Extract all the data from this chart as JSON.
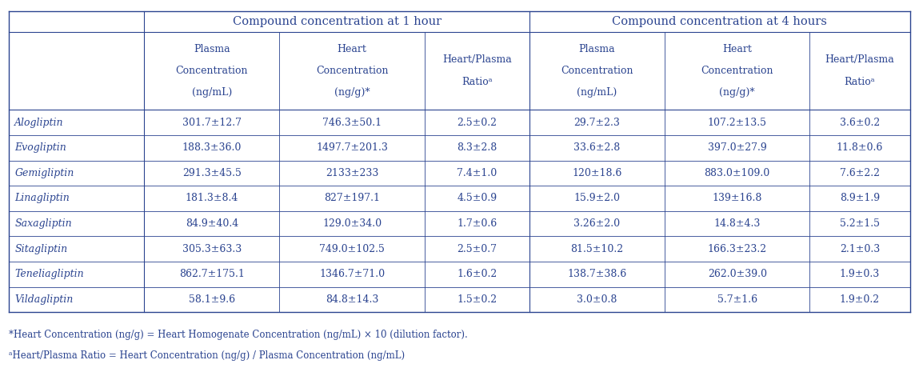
{
  "title1": "Compound concentration at 1 hour",
  "title2": "Compound concentration at 4 hours",
  "row_labels": [
    "Alogliptin",
    "Evogliptin",
    "Gemigliptin",
    "Linagliptin",
    "Saxagliptin",
    "Sitagliptin",
    "Teneliagliptin",
    "Vildagliptin"
  ],
  "col_header_line1": [
    "Plasma",
    "Heart",
    "Heart/Plasma",
    "Plasma",
    "Heart",
    "Heart/Plasma"
  ],
  "col_header_line2": [
    "Concentration",
    "Concentration",
    "Ratioᵃ",
    "Concentration",
    "Concentration",
    "Ratioᵃ"
  ],
  "col_header_line3": [
    "(ng/mL)",
    "(ng/g)*",
    "",
    "(ng/mL)",
    "(ng/g)*",
    ""
  ],
  "data": [
    [
      "301.7±12.7",
      "746.3±50.1",
      "2.5±0.2",
      "29.7±2.3",
      "107.2±13.5",
      "3.6±0.2"
    ],
    [
      "188.3±36.0",
      "1497.7±201.3",
      "8.3±2.8",
      "33.6±2.8",
      "397.0±27.9",
      "11.8±0.6"
    ],
    [
      "291.3±45.5",
      "2133±233",
      "7.4±1.0",
      "120±18.6",
      "883.0±109.0",
      "7.6±2.2"
    ],
    [
      "181.3±8.4",
      "827±197.1",
      "4.5±0.9",
      "15.9±2.0",
      "139±16.8",
      "8.9±1.9"
    ],
    [
      "84.9±40.4",
      "129.0±34.0",
      "1.7±0.6",
      "3.26±2.0",
      "14.8±4.3",
      "5.2±1.5"
    ],
    [
      "305.3±63.3",
      "749.0±102.5",
      "2.5±0.7",
      "81.5±10.2",
      "166.3±23.2",
      "2.1±0.3"
    ],
    [
      "862.7±175.1",
      "1346.7±71.0",
      "1.6±0.2",
      "138.7±38.6",
      "262.0±39.0",
      "1.9±0.3"
    ],
    [
      "58.1±9.6",
      "84.8±14.3",
      "1.5±0.2",
      "3.0±0.8",
      "5.7±1.6",
      "1.9±0.2"
    ]
  ],
  "footnote1": "*Heart Concentration (ng/g) = Heart Homogenate Concentration (ng/mL) × 10 (dilution factor).",
  "footnote2": "ᵃHeart/Plasma Ratio = Heart Concentration (ng/g) / Plasma Concentration (ng/mL)",
  "text_color": "#2B4490",
  "border_color": "#2B4490",
  "bg_color": "#FFFFFF"
}
